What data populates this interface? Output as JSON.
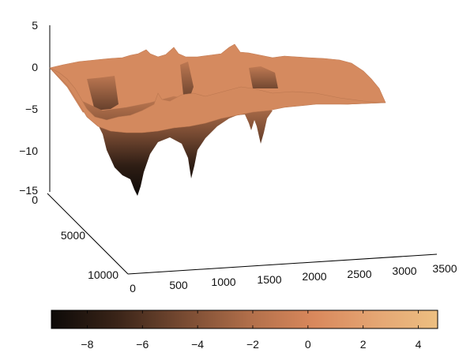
{
  "chart_data": {
    "type": "surface3d",
    "title": "",
    "xlabel": "",
    "ylabel": "",
    "zlabel": "",
    "x_range": [
      0,
      3500
    ],
    "y_range": [
      0,
      10000
    ],
    "z_range": [
      -15,
      5
    ],
    "x_ticks": [
      0,
      500,
      1000,
      1500,
      2000,
      2500,
      3000,
      3500
    ],
    "y_ticks": [
      0,
      5000,
      10000
    ],
    "z_ticks": [
      5,
      0,
      -5,
      -10,
      -15
    ],
    "surface": {
      "base_level": -3,
      "ridge_peak": 1.5,
      "deepest_trough": -14,
      "description_values": [
        {
          "x": 600,
          "depth": -13.5
        },
        {
          "x": 1400,
          "depth": -12
        },
        {
          "x": 2200,
          "depth": -8
        }
      ]
    },
    "colormap": {
      "name": "copper",
      "range": [
        -9.3,
        4.7
      ],
      "ticks": [
        -8,
        -6,
        -4,
        -2,
        0,
        2,
        4
      ],
      "stops": [
        "#0d0a08",
        "#3a2418",
        "#7a4c33",
        "#b3704b",
        "#d9885c",
        "#e5a774",
        "#edbf81"
      ]
    }
  }
}
